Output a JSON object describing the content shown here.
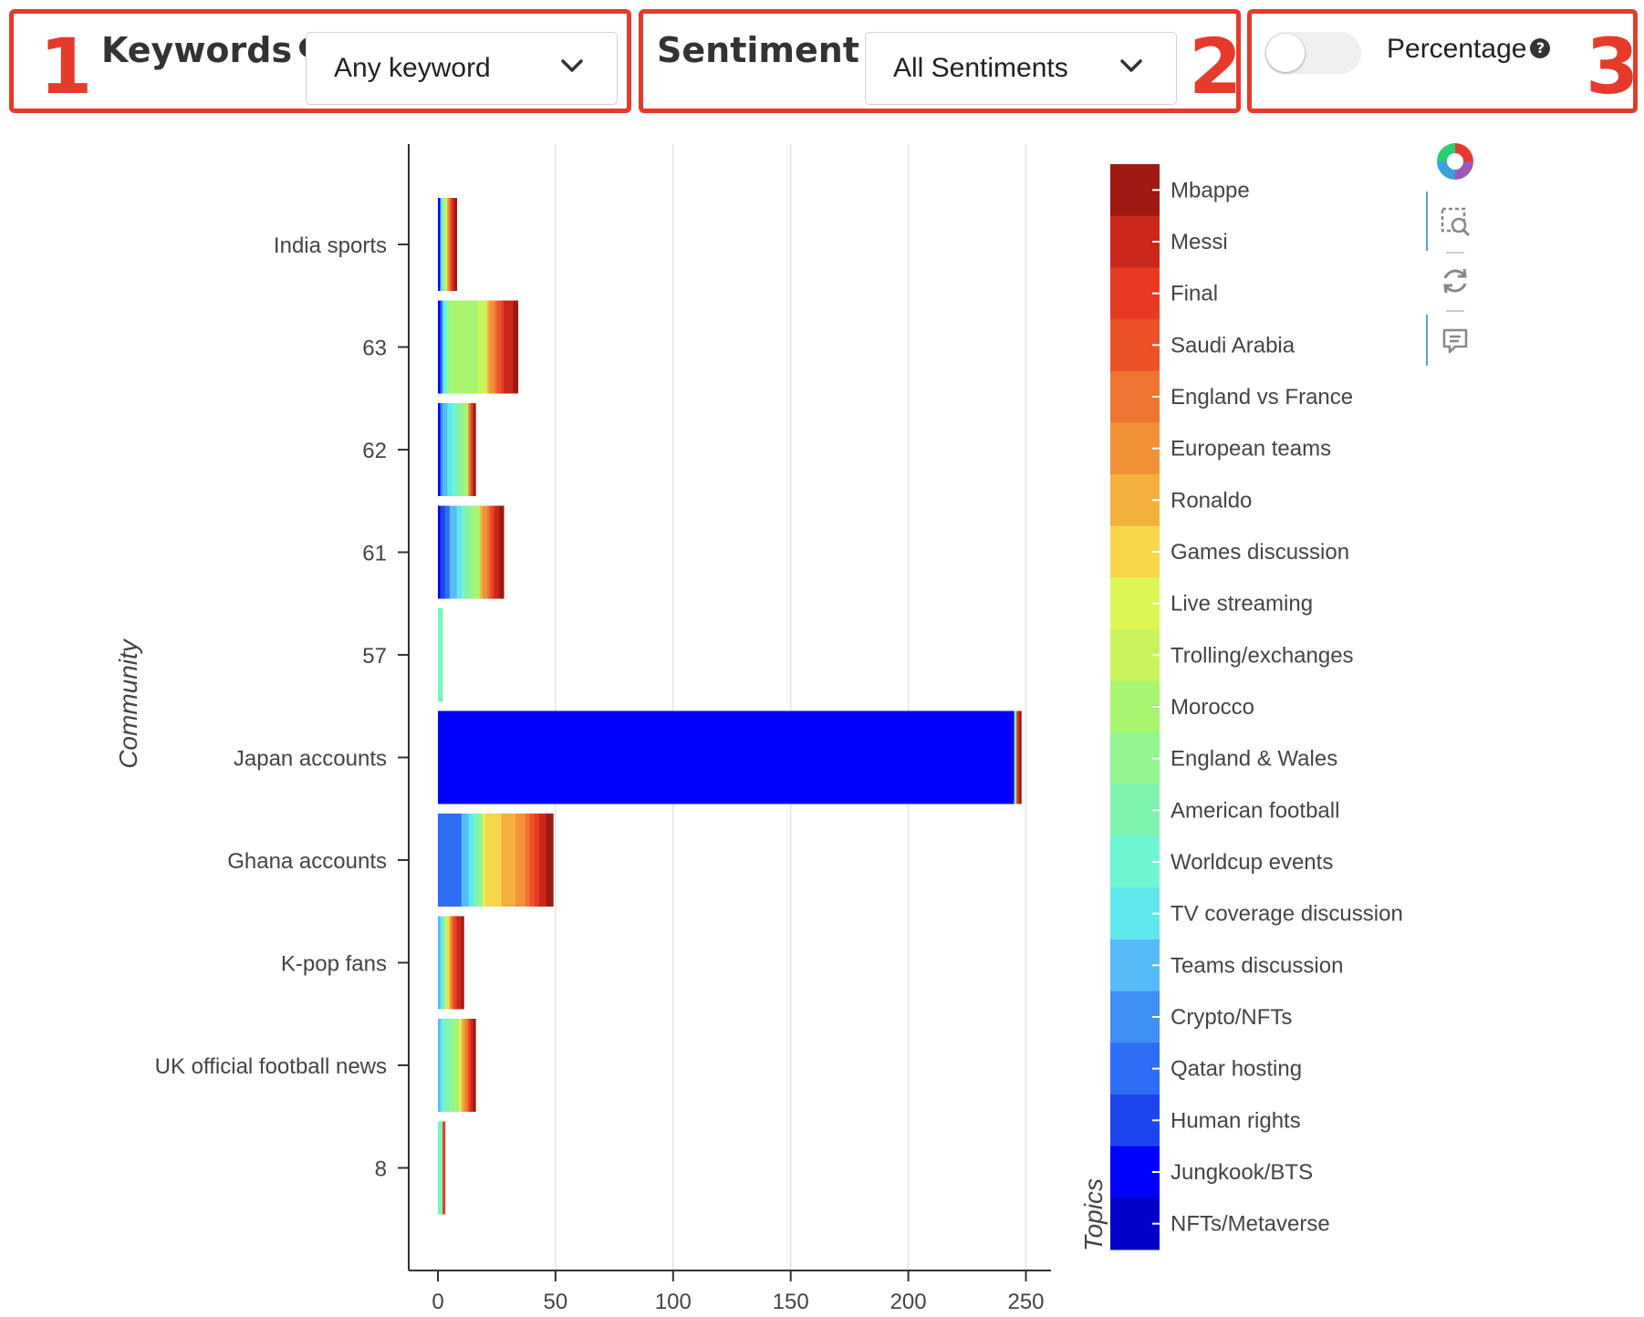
{
  "controls": {
    "keywords": {
      "badge": "1",
      "label": "Keywords",
      "help": "?",
      "value": "Any keyword"
    },
    "sentiment": {
      "badge": "2",
      "label": "Sentiment",
      "help": "?",
      "value": "All Sentiments"
    },
    "percentage": {
      "badge": "3",
      "label": "Percentage",
      "help": "?",
      "checked": false
    }
  },
  "colors": {
    "highlight": "#e53a2c",
    "toolbar_accent": "#5ba3d8"
  },
  "toolbar": [
    "logo-icon",
    "zoom-select-icon",
    "reset-icon",
    "comment-icon"
  ],
  "chart_data": {
    "type": "bar",
    "orientation": "horizontal",
    "stacked": true,
    "ylabel": "Community",
    "xlabel": "",
    "legend_title": "Topics",
    "xlim": [
      0,
      260
    ],
    "xticks": [
      "0",
      "50",
      "100",
      "150",
      "200",
      "250"
    ],
    "grid": "vertical",
    "categories": [
      "India sports",
      "63",
      "62",
      "61",
      "57",
      "Japan accounts",
      "Ghana accounts",
      "K-pop fans",
      "UK official football news",
      "8"
    ],
    "series": [
      {
        "name": "NFTs/Metaverse",
        "color": "#0000c8",
        "values": [
          0,
          0,
          0,
          0,
          0,
          0,
          0,
          0,
          0,
          0
        ]
      },
      {
        "name": "Jungkook/BTS",
        "color": "#0000ff",
        "values": [
          1,
          1,
          1,
          1,
          0,
          245,
          0,
          0,
          0,
          0
        ]
      },
      {
        "name": "Human rights",
        "color": "#1e46f0",
        "values": [
          0,
          0,
          0,
          2,
          0,
          0,
          0,
          0,
          0,
          0
        ]
      },
      {
        "name": "Qatar hosting",
        "color": "#2e6ef5",
        "values": [
          0,
          1,
          0,
          2,
          0,
          0,
          10,
          0,
          0,
          0
        ]
      },
      {
        "name": "Crypto/NFTs",
        "color": "#3f90f5",
        "values": [
          0,
          0,
          1,
          0,
          0,
          0,
          0,
          0,
          0,
          0
        ]
      },
      {
        "name": "Teams discussion",
        "color": "#55bcf7",
        "values": [
          0,
          0,
          2,
          3,
          0,
          0,
          3,
          1,
          1,
          0
        ]
      },
      {
        "name": "TV coverage discussion",
        "color": "#60e7ee",
        "values": [
          1,
          1,
          2,
          2,
          0,
          0,
          2,
          1,
          1,
          0
        ]
      },
      {
        "name": "Worldcup events",
        "color": "#6ff5d2",
        "values": [
          0,
          1,
          2,
          1,
          1,
          0,
          1,
          0,
          1,
          1
        ]
      },
      {
        "name": "American football",
        "color": "#7ef4b0",
        "values": [
          0,
          0,
          1,
          2,
          1,
          1,
          1,
          1,
          2,
          1
        ]
      },
      {
        "name": "England & Wales",
        "color": "#92f58f",
        "values": [
          1,
          1,
          2,
          2,
          0,
          0,
          2,
          0,
          2,
          0
        ]
      },
      {
        "name": "Morocco",
        "color": "#a8f46f",
        "values": [
          0,
          12,
          2,
          3,
          0,
          0,
          0,
          0,
          2,
          0
        ]
      },
      {
        "name": "Trolling/exchanges",
        "color": "#c8f35c",
        "values": [
          1,
          4,
          0,
          0,
          0,
          0,
          0,
          1,
          0,
          0
        ]
      },
      {
        "name": "Live streaming",
        "color": "#ddf553",
        "values": [
          0,
          0,
          0,
          0,
          0,
          0,
          1,
          0,
          1,
          0
        ]
      },
      {
        "name": "Games discussion",
        "color": "#f7d64a",
        "values": [
          0,
          0,
          0,
          0,
          0,
          0,
          7,
          1,
          0,
          0
        ]
      },
      {
        "name": "Ronaldo",
        "color": "#f3b03d",
        "values": [
          0,
          1,
          0,
          1,
          0,
          0,
          6,
          0,
          1,
          0
        ]
      },
      {
        "name": "European teams",
        "color": "#f19238",
        "values": [
          1,
          2,
          0,
          2,
          0,
          0,
          4,
          1,
          1,
          0
        ]
      },
      {
        "name": "England vs France",
        "color": "#ee7432",
        "values": [
          0,
          1,
          1,
          1,
          0,
          0,
          2,
          0,
          1,
          0
        ]
      },
      {
        "name": "Saudi Arabia",
        "color": "#ec5228",
        "values": [
          1,
          2,
          0,
          1,
          0,
          0,
          2,
          1,
          0,
          0
        ]
      },
      {
        "name": "Final",
        "color": "#e93a23",
        "values": [
          0,
          1,
          1,
          1,
          0,
          1,
          2,
          1,
          1,
          1
        ]
      },
      {
        "name": "Messi",
        "color": "#c9271c",
        "values": [
          1,
          4,
          0,
          2,
          0,
          0,
          3,
          2,
          1,
          0
        ]
      },
      {
        "name": "Mbappe",
        "color": "#9e1a12",
        "values": [
          1,
          2,
          1,
          2,
          0,
          1,
          3,
          1,
          1,
          0
        ]
      }
    ]
  }
}
